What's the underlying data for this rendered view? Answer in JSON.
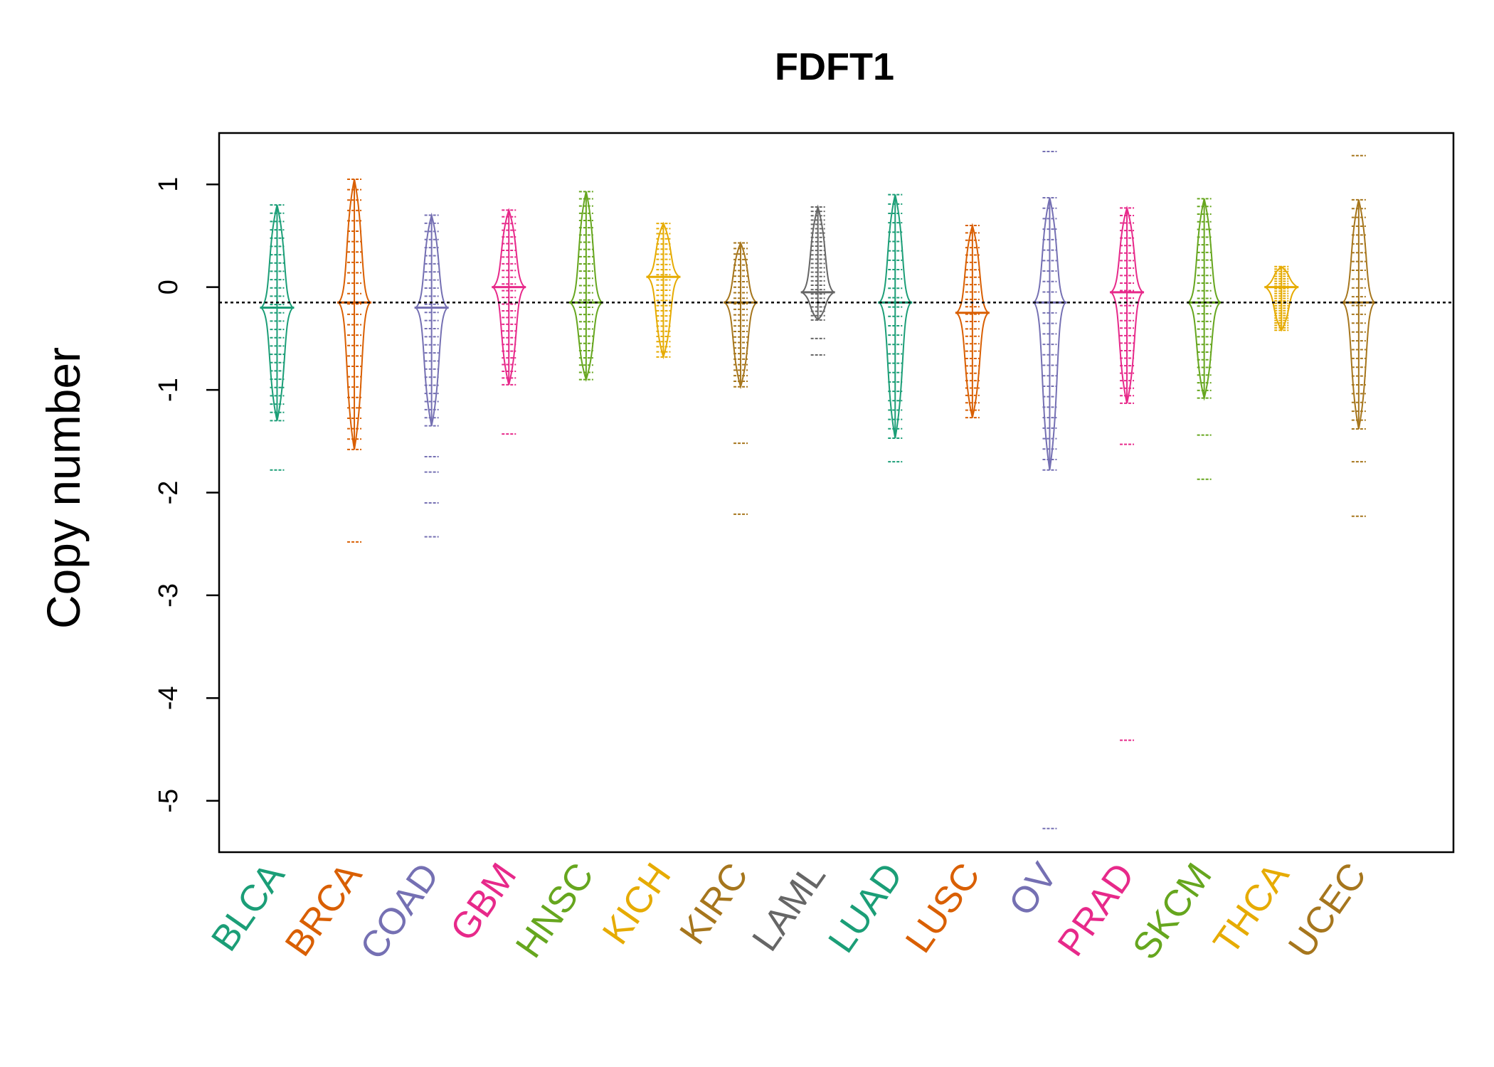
{
  "chart_data": {
    "type": "beanplot",
    "title": "FDFT1",
    "xlabel": "",
    "ylabel": "Copy number",
    "ylim": [
      -5.5,
      1.5
    ],
    "yticks": [
      1,
      0,
      -1,
      -2,
      -3,
      -4,
      -5
    ],
    "ytick_labels": [
      "1",
      "0",
      "-1",
      "-2",
      "-3",
      "-4",
      "-5"
    ],
    "overall_mean": -0.15,
    "categories": [
      "BLCA",
      "BRCA",
      "COAD",
      "GBM",
      "HNSC",
      "KICH",
      "KIRC",
      "LAML",
      "LUAD",
      "LUSC",
      "OV",
      "PRAD",
      "SKCM",
      "THCA",
      "UCEC"
    ],
    "colors": [
      "#1b9e77",
      "#d95f02",
      "#7570b3",
      "#e7298a",
      "#66a61e",
      "#e6ab02",
      "#a6761d",
      "#666666",
      "#1b9e77",
      "#d95f02",
      "#7570b3",
      "#e7298a",
      "#66a61e",
      "#e6ab02",
      "#a6761d"
    ],
    "series": [
      {
        "name": "BLCA",
        "mean": -0.2,
        "min": -1.3,
        "max": 0.8,
        "outliers": [
          -1.78
        ]
      },
      {
        "name": "BRCA",
        "mean": -0.15,
        "min": -1.58,
        "max": 1.05,
        "outliers": [
          -2.48
        ]
      },
      {
        "name": "COAD",
        "mean": -0.2,
        "min": -1.35,
        "max": 0.7,
        "outliers": [
          -1.65,
          -1.8,
          -2.1,
          -2.43
        ]
      },
      {
        "name": "GBM",
        "mean": 0.0,
        "min": -0.95,
        "max": 0.75,
        "outliers": [
          -1.43
        ]
      },
      {
        "name": "HNSC",
        "mean": -0.15,
        "min": -0.9,
        "max": 0.93,
        "outliers": []
      },
      {
        "name": "KICH",
        "mean": 0.1,
        "min": -0.68,
        "max": 0.62,
        "outliers": []
      },
      {
        "name": "KIRC",
        "mean": -0.15,
        "min": -0.97,
        "max": 0.43,
        "outliers": [
          -1.52,
          -2.21
        ]
      },
      {
        "name": "LAML",
        "mean": -0.05,
        "min": -0.32,
        "max": 0.78,
        "outliers": [
          -0.5,
          -0.66
        ]
      },
      {
        "name": "LUAD",
        "mean": -0.15,
        "min": -1.47,
        "max": 0.9,
        "outliers": [
          -1.7
        ]
      },
      {
        "name": "LUSC",
        "mean": -0.25,
        "min": -1.27,
        "max": 0.6,
        "outliers": []
      },
      {
        "name": "OV",
        "mean": -0.15,
        "min": -1.78,
        "max": 0.87,
        "outliers": [
          1.32,
          -5.27
        ]
      },
      {
        "name": "PRAD",
        "mean": -0.05,
        "min": -1.13,
        "max": 0.77,
        "outliers": [
          -1.53,
          -4.41
        ]
      },
      {
        "name": "SKCM",
        "mean": -0.15,
        "min": -1.08,
        "max": 0.86,
        "outliers": [
          -1.44,
          -1.87
        ]
      },
      {
        "name": "THCA",
        "mean": 0.0,
        "min": -0.42,
        "max": 0.2,
        "outliers": []
      },
      {
        "name": "UCEC",
        "mean": -0.15,
        "min": -1.38,
        "max": 0.85,
        "outliers": [
          1.28,
          -1.7,
          -2.23
        ]
      }
    ]
  }
}
